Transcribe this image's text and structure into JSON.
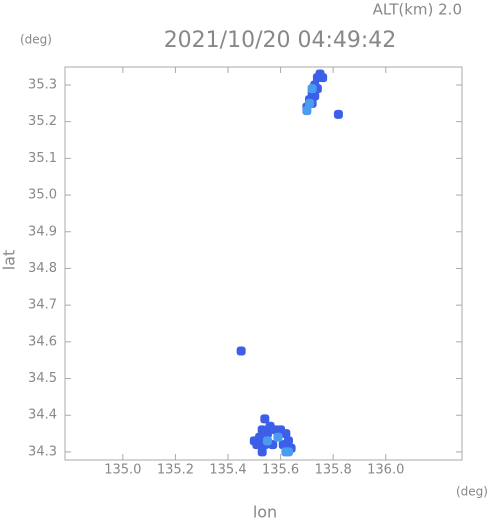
{
  "chart_data": {
    "type": "scatter",
    "title": "2021/10/20 04:49:42",
    "subtitle": "ALT(km) 2.0",
    "y_unit": "(deg)",
    "x_unit": "(deg)",
    "x_label": "lon",
    "y_label": "lat",
    "xlim": [
      134.78,
      136.29
    ],
    "ylim": [
      34.278,
      35.349
    ],
    "xticks": [
      {
        "value": 135,
        "label": "135.0"
      },
      135.2,
      135.4,
      135.6,
      135.8,
      {
        "value": 136,
        "label": "136.0"
      }
    ],
    "yticks": [
      34.3,
      34.4,
      34.5,
      34.6,
      34.7,
      34.8,
      34.9,
      {
        "value": 35,
        "label": "35.0"
      },
      35.1,
      35.2,
      35.3
    ],
    "series": [
      {
        "color": "#3d5fe8",
        "x": [
          135.74,
          135.75,
          135.76,
          135.73,
          135.74,
          135.72,
          135.73,
          135.71,
          135.72,
          135.7,
          135.82,
          135.45,
          135.5,
          135.52,
          135.53,
          135.54,
          135.55,
          135.56,
          135.58,
          135.6,
          135.62,
          135.63,
          135.61,
          135.57,
          135.54,
          135.51,
          135.64,
          135.53
        ],
        "values": [
          35.32,
          35.33,
          35.32,
          35.3,
          35.29,
          35.28,
          35.27,
          35.26,
          35.25,
          35.24,
          35.22,
          34.575,
          34.33,
          34.34,
          34.36,
          34.39,
          34.35,
          34.37,
          34.36,
          34.36,
          34.35,
          34.33,
          34.32,
          34.32,
          34.32,
          34.32,
          34.31,
          34.3
        ]
      },
      {
        "color": "#4a9cf0",
        "x": [
          135.72,
          135.71,
          135.7,
          135.55,
          135.59,
          135.63,
          135.62
        ],
        "values": [
          35.29,
          35.25,
          35.23,
          34.33,
          34.34,
          34.3,
          34.3
        ]
      }
    ]
  }
}
